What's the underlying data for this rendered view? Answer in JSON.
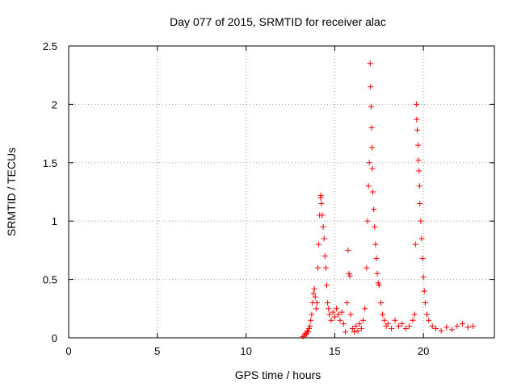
{
  "chart_data": {
    "type": "scatter",
    "title": "Day 077 of 2015, SRMTID for receiver alac",
    "xlabel": "GPS time / hours",
    "ylabel": "SRMTID / TECUs",
    "xlim": [
      0,
      24
    ],
    "ylim": [
      0,
      2.5
    ],
    "xticks": [
      0,
      5,
      10,
      15,
      20
    ],
    "yticks": [
      0,
      0.5,
      1,
      1.5,
      2,
      2.5
    ],
    "xtick_labels": [
      "0",
      "5",
      "10",
      "15",
      "20"
    ],
    "ytick_labels": [
      "0",
      "0.5",
      "1",
      "1.5",
      "2",
      "2.5"
    ],
    "grid": true,
    "marker": "+",
    "series": [
      {
        "name": "SRMTID",
        "color": "#ff0000",
        "points": [
          [
            13.2,
            0.01
          ],
          [
            13.3,
            0.02
          ],
          [
            13.35,
            0.04
          ],
          [
            13.4,
            0.03
          ],
          [
            13.45,
            0.06
          ],
          [
            13.5,
            0.05
          ],
          [
            13.55,
            0.08
          ],
          [
            13.6,
            0.1
          ],
          [
            13.65,
            0.15
          ],
          [
            13.7,
            0.2
          ],
          [
            13.75,
            0.3
          ],
          [
            13.8,
            0.38
          ],
          [
            13.85,
            0.42
          ],
          [
            13.9,
            0.35
          ],
          [
            13.95,
            0.25
          ],
          [
            14.0,
            0.3
          ],
          [
            14.05,
            0.6
          ],
          [
            14.1,
            0.8
          ],
          [
            14.15,
            1.05
          ],
          [
            14.2,
            1.2
          ],
          [
            14.22,
            1.22
          ],
          [
            14.25,
            1.15
          ],
          [
            14.3,
            1.05
          ],
          [
            14.35,
            0.95
          ],
          [
            14.4,
            0.85
          ],
          [
            14.45,
            0.7
          ],
          [
            14.5,
            0.6
          ],
          [
            14.55,
            0.45
          ],
          [
            14.6,
            0.3
          ],
          [
            14.65,
            0.25
          ],
          [
            14.7,
            0.2
          ],
          [
            14.8,
            0.15
          ],
          [
            14.9,
            0.22
          ],
          [
            15.0,
            0.18
          ],
          [
            15.1,
            0.25
          ],
          [
            15.2,
            0.2
          ],
          [
            15.3,
            0.15
          ],
          [
            15.4,
            0.22
          ],
          [
            15.5,
            0.12
          ],
          [
            15.6,
            0.05
          ],
          [
            15.7,
            0.3
          ],
          [
            15.75,
            0.75
          ],
          [
            15.8,
            0.55
          ],
          [
            15.85,
            0.53
          ],
          [
            15.9,
            0.2
          ],
          [
            16.0,
            0.08
          ],
          [
            16.1,
            0.05
          ],
          [
            16.2,
            0.1
          ],
          [
            16.3,
            0.06
          ],
          [
            16.4,
            0.12
          ],
          [
            16.5,
            0.08
          ],
          [
            16.6,
            0.15
          ],
          [
            16.7,
            0.25
          ],
          [
            16.8,
            0.6
          ],
          [
            16.85,
            1.0
          ],
          [
            16.9,
            1.3
          ],
          [
            16.95,
            1.5
          ],
          [
            17.0,
            2.35
          ],
          [
            17.02,
            2.15
          ],
          [
            17.05,
            1.98
          ],
          [
            17.08,
            1.8
          ],
          [
            17.1,
            1.63
          ],
          [
            17.12,
            1.45
          ],
          [
            17.15,
            1.25
          ],
          [
            17.2,
            1.1
          ],
          [
            17.25,
            0.95
          ],
          [
            17.3,
            0.8
          ],
          [
            17.35,
            0.68
          ],
          [
            17.4,
            0.55
          ],
          [
            17.45,
            0.47
          ],
          [
            17.5,
            0.45
          ],
          [
            17.6,
            0.3
          ],
          [
            17.7,
            0.2
          ],
          [
            17.8,
            0.15
          ],
          [
            17.9,
            0.1
          ],
          [
            18.0,
            0.12
          ],
          [
            18.2,
            0.08
          ],
          [
            18.4,
            0.15
          ],
          [
            18.6,
            0.1
          ],
          [
            18.8,
            0.12
          ],
          [
            19.0,
            0.08
          ],
          [
            19.2,
            0.1
          ],
          [
            19.4,
            0.15
          ],
          [
            19.5,
            0.2
          ],
          [
            19.55,
            0.8
          ],
          [
            19.6,
            2.0
          ],
          [
            19.62,
            1.87
          ],
          [
            19.65,
            1.78
          ],
          [
            19.7,
            1.65
          ],
          [
            19.72,
            1.52
          ],
          [
            19.75,
            1.43
          ],
          [
            19.78,
            1.3
          ],
          [
            19.8,
            1.15
          ],
          [
            19.85,
            1.0
          ],
          [
            19.9,
            0.85
          ],
          [
            19.95,
            0.68
          ],
          [
            20.0,
            0.52
          ],
          [
            20.05,
            0.4
          ],
          [
            20.1,
            0.3
          ],
          [
            20.2,
            0.2
          ],
          [
            20.3,
            0.15
          ],
          [
            20.5,
            0.1
          ],
          [
            20.7,
            0.08
          ],
          [
            21.0,
            0.06
          ],
          [
            21.3,
            0.09
          ],
          [
            21.6,
            0.07
          ],
          [
            21.9,
            0.1
          ],
          [
            22.2,
            0.12
          ],
          [
            22.5,
            0.09
          ],
          [
            22.8,
            0.1
          ]
        ]
      }
    ]
  }
}
